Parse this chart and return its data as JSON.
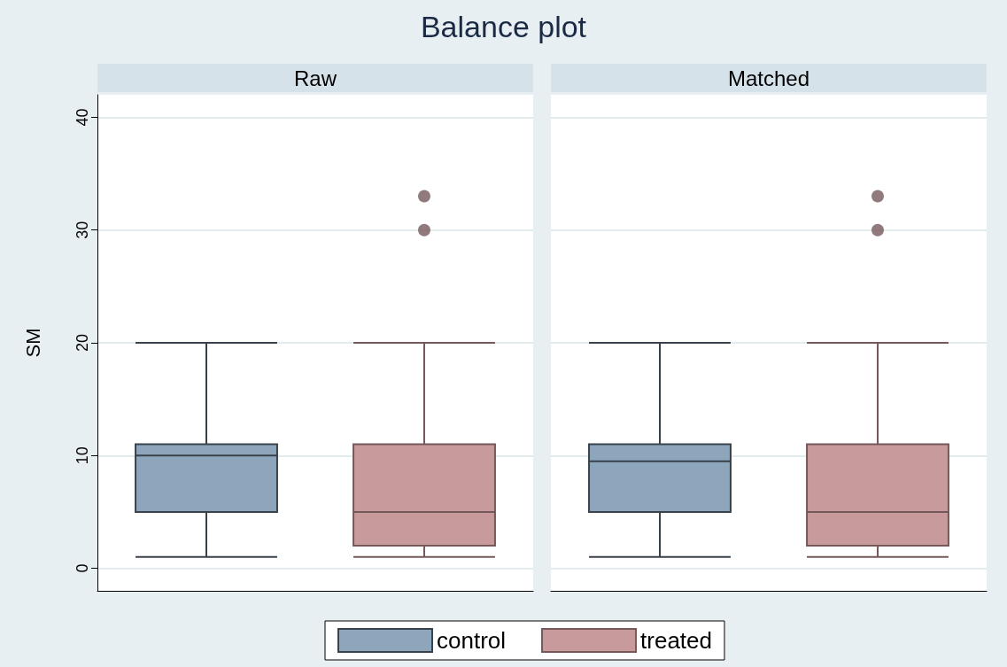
{
  "chart_data": {
    "type": "box",
    "title": "Balance plot",
    "ylabel": "SM",
    "categories": [
      "Raw",
      "Matched"
    ],
    "ylim": [
      -2,
      42
    ],
    "yticks": [
      0,
      10,
      20,
      30,
      40
    ],
    "grid": "y",
    "legend": "bottom",
    "marker": "circle",
    "series": [
      {
        "name": "control",
        "color": "#8ea6bb",
        "boxes": [
          {
            "low": 1,
            "q1": 5,
            "median": 10,
            "q3": 11,
            "high": 20
          },
          {
            "low": 1,
            "q1": 5,
            "median": 9.5,
            "q3": 11,
            "high": 20
          }
        ]
      },
      {
        "name": "treated",
        "color": "#c99a9c",
        "boxes": [
          {
            "low": 1,
            "q1": 2,
            "median": 5,
            "q3": 11,
            "high": 20,
            "outliers": [
              30,
              33
            ]
          },
          {
            "low": 1,
            "q1": 2,
            "median": 5,
            "q3": 11,
            "high": 20,
            "outliers": [
              30,
              33
            ]
          }
        ]
      }
    ]
  }
}
